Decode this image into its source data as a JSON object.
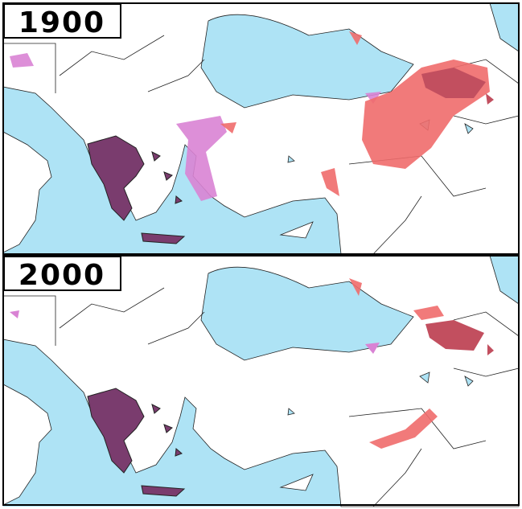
{
  "panels": [
    {
      "label": "1900"
    },
    {
      "label": "2000"
    }
  ]
}
